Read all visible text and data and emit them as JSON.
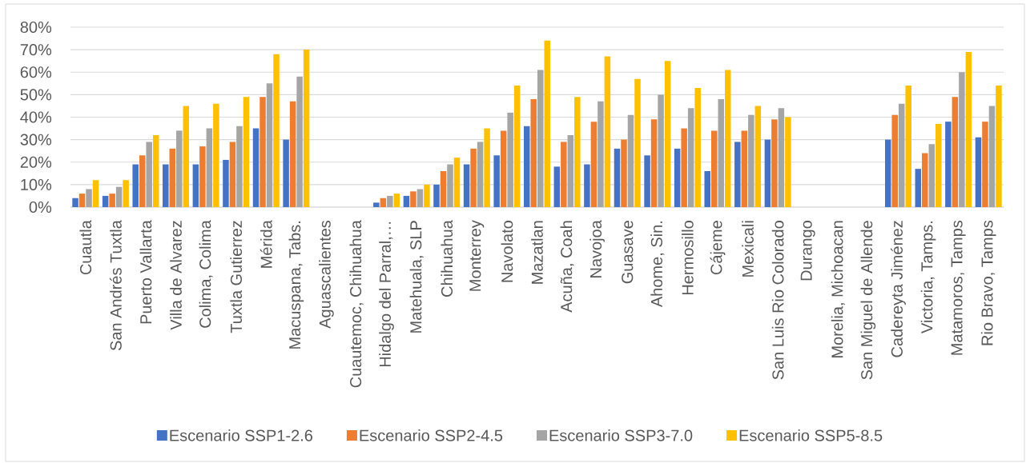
{
  "chart_data": {
    "type": "bar",
    "categories": [
      "Cuautla",
      "San Andrés Tuxtla",
      "Puerto Vallarta",
      "Villa de Alvarez",
      "Colima, Colima",
      "Tuxtla Gutierrez",
      "Mérida",
      "Macuspana, Tabs.",
      "Aguascalientes",
      "Cuautemoc, Chihuahua",
      "Hidalgo del Parral,…",
      "Matehuala, SLP",
      "Chihuahua",
      "Monterrey",
      "Navolato",
      "Mazatlan",
      "Acuña, Coah",
      "Navojoa",
      "Guasave",
      "Ahome, Sin.",
      "Hermosillo",
      "Cájeme",
      "Mexicali",
      "San Luis Rio Colorado",
      "Durango",
      "Morelia, Michoacan",
      "San Miguel de Allende",
      "Cadereyta Jiménez",
      "Victoria, Tamps.",
      "Matamoros, Tamps",
      "Rio Bravo, Tamps"
    ],
    "series": [
      {
        "name": "Escenario SSP1-2.6",
        "color": "#4472c4",
        "values": [
          4,
          5,
          19,
          19,
          19,
          21,
          35,
          30,
          null,
          null,
          2,
          5,
          10,
          19,
          23,
          36,
          18,
          19,
          26,
          23,
          26,
          16,
          29,
          30,
          null,
          null,
          null,
          30,
          17,
          38,
          31
        ]
      },
      {
        "name": "Escenario SSP2-4.5",
        "color": "#ed7d31",
        "values": [
          6,
          6,
          23,
          26,
          27,
          29,
          49,
          47,
          null,
          null,
          4,
          7,
          16,
          26,
          34,
          48,
          29,
          38,
          30,
          39,
          35,
          34,
          34,
          39,
          null,
          null,
          null,
          41,
          24,
          49,
          38
        ]
      },
      {
        "name": "Escenario SSP3-7.0",
        "color": "#a5a5a5",
        "values": [
          8,
          9,
          29,
          34,
          35,
          36,
          55,
          58,
          null,
          null,
          5,
          8,
          19,
          29,
          42,
          61,
          32,
          47,
          41,
          50,
          44,
          48,
          41,
          44,
          null,
          null,
          null,
          46,
          28,
          60,
          45
        ]
      },
      {
        "name": "Escenario SSP5-8.5",
        "color": "#ffc000",
        "values": [
          12,
          12,
          32,
          45,
          46,
          49,
          68,
          70,
          null,
          null,
          6,
          10,
          22,
          35,
          54,
          74,
          49,
          67,
          57,
          65,
          53,
          61,
          45,
          40,
          null,
          null,
          null,
          54,
          37,
          69,
          54
        ]
      }
    ],
    "ylim": [
      0,
      80
    ],
    "yticks": [
      {
        "value": 0,
        "label": "0%"
      },
      {
        "value": 10,
        "label": "10%"
      },
      {
        "value": 20,
        "label": "20%"
      },
      {
        "value": 30,
        "label": "30%"
      },
      {
        "value": 40,
        "label": "40%"
      },
      {
        "value": 50,
        "label": "50%"
      },
      {
        "value": 60,
        "label": "60%"
      },
      {
        "value": 70,
        "label": "70%"
      },
      {
        "value": 80,
        "label": "80%"
      }
    ],
    "grid": "y",
    "legend": "bottom"
  }
}
